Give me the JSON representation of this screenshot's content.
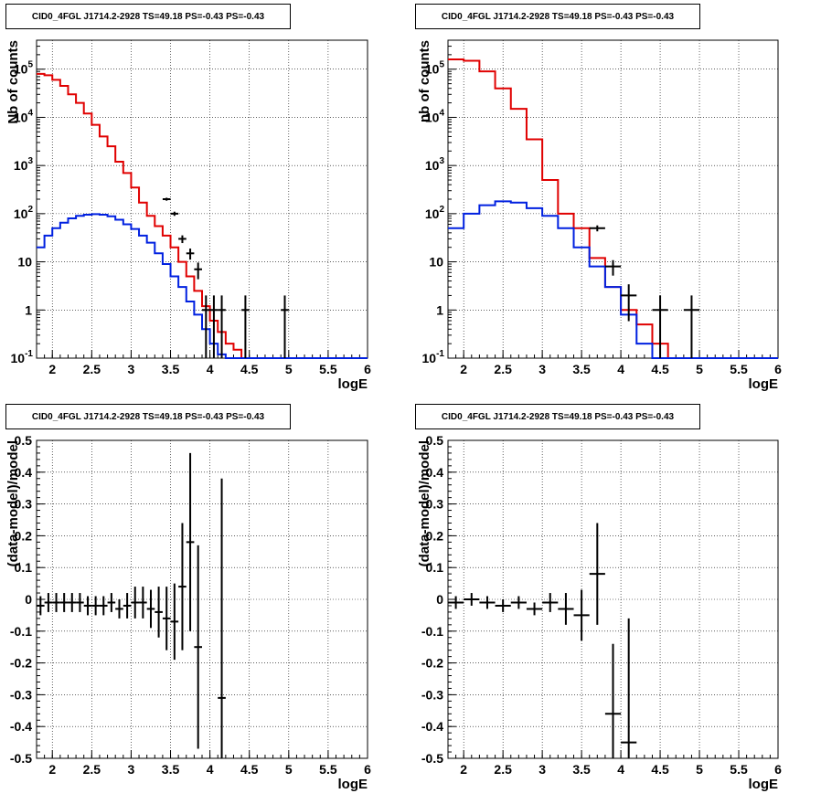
{
  "panels": [
    {
      "title": "CID0_4FGL J1714.2-2928 TS=49.18 PS=-0.43 PS=-0.43"
    },
    {
      "title": "CID0_4FGL J1714.2-2928 TS=49.18 PS=-0.43 PS=-0.43"
    },
    {
      "title": "CID0_4FGL J1714.2-2928 TS=49.18 PS=-0.43 PS=-0.43"
    },
    {
      "title": "CID0_4FGL J1714.2-2928 TS=49.18 PS=-0.43 PS=-0.43"
    }
  ],
  "colors": {
    "data": "#000000",
    "model_total": "#e00000",
    "model_source": "#0020e0"
  },
  "chart_data": [
    {
      "type": "line",
      "title": "CID0_4FGL J1714.2-2928 TS=49.18 PS=-0.43 PS=-0.43",
      "xlabel": "logE",
      "ylabel": "Nb of counts",
      "xlim": [
        1.8,
        6
      ],
      "ylim": [
        0.1,
        400000
      ],
      "ylog": true,
      "grid": true,
      "xticks": [
        "2",
        "2.5",
        "3",
        "3.5",
        "4",
        "4.5",
        "5",
        "5.5",
        "6"
      ],
      "yticks": [
        "10^-1",
        "1",
        "10",
        "10^2",
        "10^3",
        "10^4",
        "10^5"
      ],
      "bin_width": 0.1,
      "x": [
        1.85,
        1.95,
        2.05,
        2.15,
        2.25,
        2.35,
        2.45,
        2.55,
        2.65,
        2.75,
        2.85,
        2.95,
        3.05,
        3.15,
        3.25,
        3.35,
        3.45,
        3.55,
        3.65,
        3.75,
        3.85,
        3.95,
        4.05,
        4.15,
        4.25,
        4.35,
        4.45,
        4.55,
        4.65,
        4.75,
        4.85,
        4.95,
        5.05,
        5.15,
        5.25,
        5.35,
        5.45,
        5.55,
        5.65,
        5.75,
        5.85,
        5.95
      ],
      "series": [
        {
          "role": "model_total",
          "values": [
            80000,
            75000,
            60000,
            45000,
            30000,
            20000,
            12000,
            7000,
            4000,
            2500,
            1200,
            700,
            350,
            170,
            90,
            55,
            35,
            20,
            10,
            5,
            2.5,
            1.2,
            0.6,
            0.35,
            0.2,
            0.15,
            0.1,
            0,
            0,
            0,
            0,
            0,
            0,
            0,
            0,
            0,
            0,
            0,
            0,
            0,
            0,
            0
          ]
        },
        {
          "role": "model_source",
          "values": [
            20,
            35,
            50,
            65,
            80,
            90,
            95,
            98,
            95,
            88,
            75,
            60,
            48,
            35,
            25,
            15,
            9,
            5,
            3,
            1.5,
            0.8,
            0.4,
            0.2,
            0.12,
            0.1,
            0,
            0,
            0,
            0,
            0,
            0,
            0,
            0,
            0,
            0,
            0,
            0,
            0,
            0,
            0,
            0,
            0
          ]
        },
        {
          "role": "data",
          "type": "errorbar",
          "points": [
            [
              3.45,
              200
            ],
            [
              3.55,
              100
            ],
            [
              3.65,
              30
            ],
            [
              3.75,
              15
            ],
            [
              3.85,
              7
            ],
            [
              3.95,
              1
            ],
            [
              4.05,
              1
            ],
            [
              4.15,
              1
            ],
            [
              4.45,
              1
            ],
            [
              4.95,
              1
            ]
          ]
        }
      ]
    },
    {
      "type": "line",
      "title": "CID0_4FGL J1714.2-2928 TS=49.18 PS=-0.43 PS=-0.43",
      "xlabel": "logE",
      "ylabel": "nb of counts",
      "xlim": [
        1.8,
        6
      ],
      "ylim": [
        0.1,
        400000
      ],
      "ylog": true,
      "grid": true,
      "xticks": [
        "2",
        "2.5",
        "3",
        "3.5",
        "4",
        "4.5",
        "5",
        "5.5",
        "6"
      ],
      "yticks": [
        "10^-1",
        "1",
        "10",
        "10^2",
        "10^3",
        "10^4",
        "10^5"
      ],
      "bin_width": 0.2,
      "x": [
        1.9,
        2.1,
        2.3,
        2.5,
        2.7,
        2.9,
        3.1,
        3.3,
        3.5,
        3.7,
        3.9,
        4.1,
        4.3,
        4.5,
        4.7,
        4.9,
        5.1,
        5.3,
        5.5,
        5.7,
        5.9
      ],
      "series": [
        {
          "role": "model_total",
          "values": [
            160000,
            150000,
            90000,
            40000,
            15000,
            3500,
            500,
            100,
            50,
            12,
            3,
            1,
            0.5,
            0.2,
            0.1,
            0,
            0,
            0,
            0,
            0,
            0
          ]
        },
        {
          "role": "model_source",
          "values": [
            50,
            100,
            150,
            180,
            170,
            130,
            90,
            50,
            20,
            8,
            3,
            0.8,
            0.2,
            0.1,
            0,
            0,
            0,
            0,
            0,
            0,
            0
          ]
        },
        {
          "role": "data",
          "type": "errorbar",
          "points": [
            [
              3.7,
              50
            ],
            [
              3.9,
              8
            ],
            [
              4.1,
              2
            ],
            [
              4.5,
              1
            ],
            [
              4.9,
              1
            ]
          ]
        }
      ]
    },
    {
      "type": "scatter",
      "title": "CID0_4FGL J1714.2-2928 TS=49.18 PS=-0.43 PS=-0.43",
      "xlabel": "logE",
      "ylabel": "(data-model)/model",
      "xlim": [
        1.8,
        6
      ],
      "ylim": [
        -0.5,
        0.5
      ],
      "grid": true,
      "xticks": [
        "2",
        "2.5",
        "3",
        "3.5",
        "4",
        "4.5",
        "5",
        "5.5",
        "6"
      ],
      "yticks": [
        "-0.5",
        "-0.4",
        "-0.3",
        "-0.2",
        "-0.1",
        "0",
        "0.1",
        "0.2",
        "0.3",
        "0.4",
        "0.5"
      ],
      "bin_width": 0.1,
      "points": [
        [
          1.85,
          -0.02,
          0.03
        ],
        [
          1.95,
          -0.01,
          0.03
        ],
        [
          2.05,
          -0.01,
          0.03
        ],
        [
          2.15,
          -0.01,
          0.03
        ],
        [
          2.25,
          -0.01,
          0.03
        ],
        [
          2.35,
          -0.01,
          0.03
        ],
        [
          2.45,
          -0.02,
          0.03
        ],
        [
          2.55,
          -0.02,
          0.03
        ],
        [
          2.65,
          -0.02,
          0.03
        ],
        [
          2.75,
          -0.01,
          0.03
        ],
        [
          2.85,
          -0.03,
          0.03
        ],
        [
          2.95,
          -0.02,
          0.04
        ],
        [
          3.05,
          -0.01,
          0.05
        ],
        [
          3.15,
          -0.01,
          0.05
        ],
        [
          3.25,
          -0.03,
          0.06
        ],
        [
          3.35,
          -0.04,
          0.08
        ],
        [
          3.45,
          -0.06,
          0.1
        ],
        [
          3.55,
          -0.07,
          0.12
        ],
        [
          3.65,
          0.04,
          0.2
        ],
        [
          3.75,
          0.18,
          0.28
        ],
        [
          3.85,
          -0.15,
          0.32
        ],
        [
          4.15,
          -0.31,
          0.69
        ]
      ]
    },
    {
      "type": "scatter",
      "title": "CID0_4FGL J1714.2-2928 TS=49.18 PS=-0.43 PS=-0.43",
      "xlabel": "logE",
      "ylabel": "(data-model)/model",
      "xlim": [
        1.8,
        6
      ],
      "ylim": [
        -0.5,
        0.5
      ],
      "grid": true,
      "xticks": [
        "2",
        "2.5",
        "3",
        "3.5",
        "4",
        "4.5",
        "5",
        "5.5",
        "6"
      ],
      "yticks": [
        "-0.5",
        "-0.4",
        "-0.3",
        "-0.2",
        "-0.1",
        "0",
        "0.1",
        "0.2",
        "0.3",
        "0.4",
        "0.5"
      ],
      "bin_width": 0.2,
      "points": [
        [
          1.9,
          -0.01,
          0.02
        ],
        [
          2.1,
          0,
          0.02
        ],
        [
          2.3,
          -0.01,
          0.02
        ],
        [
          2.5,
          -0.02,
          0.02
        ],
        [
          2.7,
          -0.01,
          0.02
        ],
        [
          2.9,
          -0.03,
          0.02
        ],
        [
          3.1,
          -0.01,
          0.03
        ],
        [
          3.3,
          -0.03,
          0.05
        ],
        [
          3.5,
          -0.05,
          0.08
        ],
        [
          3.7,
          0.08,
          0.16
        ],
        [
          3.9,
          -0.36,
          0.22
        ],
        [
          4.1,
          -0.45,
          0.39
        ]
      ]
    }
  ]
}
